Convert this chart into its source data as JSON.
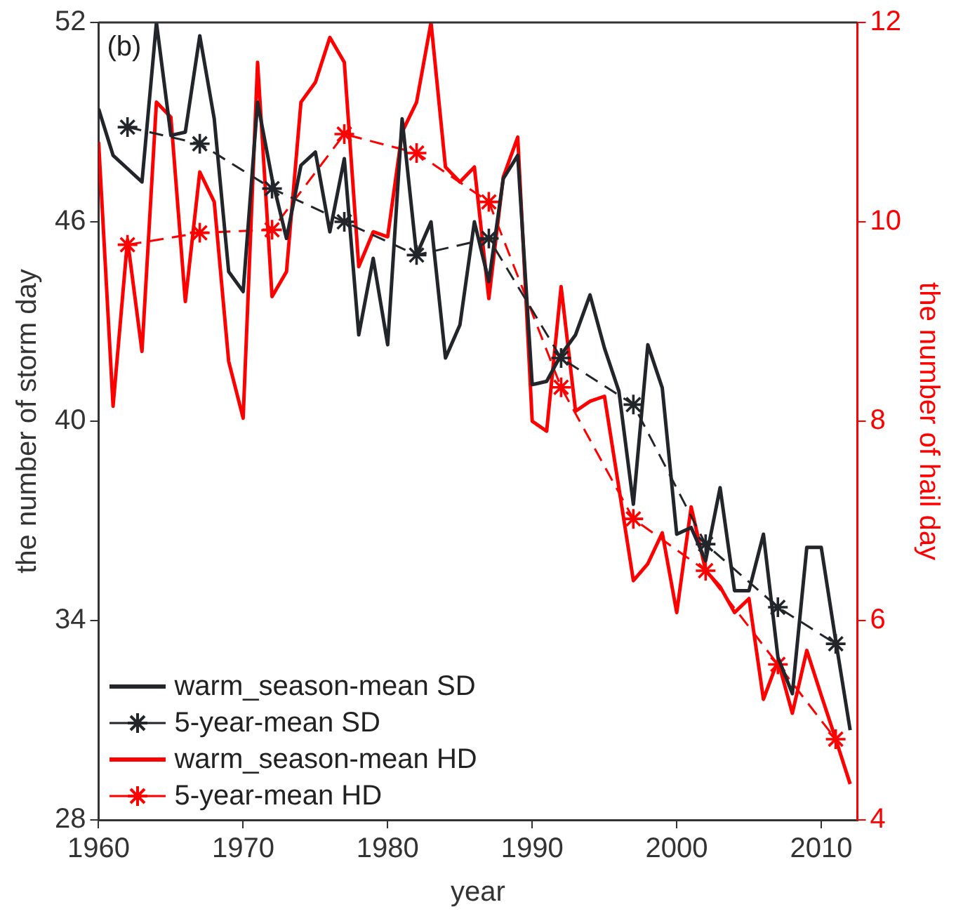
{
  "chart_data": {
    "type": "line",
    "xlabel": "year",
    "ylabel": "the number of storm day",
    "y2label": "the number of hail day",
    "annotations": [
      "(b)"
    ],
    "xlim": [
      1960,
      2012.5
    ],
    "xticks": [
      1960,
      1970,
      1980,
      1990,
      2000,
      2010
    ],
    "ylim": [
      28,
      52
    ],
    "yticks": [
      28,
      34,
      40,
      46,
      52
    ],
    "y2lim": [
      4,
      12
    ],
    "y2ticks": [
      4,
      6,
      8,
      10,
      12
    ],
    "legend": "bottom left",
    "grid": false,
    "x": [
      1960,
      1961,
      1962,
      1963,
      1964,
      1965,
      1966,
      1967,
      1968,
      1969,
      1970,
      1971,
      1972,
      1973,
      1974,
      1975,
      1976,
      1977,
      1978,
      1979,
      1980,
      1981,
      1982,
      1983,
      1984,
      1985,
      1986,
      1987,
      1988,
      1989,
      1990,
      1991,
      1992,
      1993,
      1994,
      1995,
      1996,
      1997,
      1998,
      1999,
      2000,
      2001,
      2002,
      2003,
      2004,
      2005,
      2006,
      2007,
      2008,
      2009,
      2010,
      2011,
      2012
    ],
    "series": [
      {
        "name": "warm_season-mean SD",
        "color": "#22262b",
        "marker": "none",
        "line_style": "solid",
        "values": [
          49.4,
          48.0,
          47.6,
          47.2,
          52,
          48.6,
          48.7,
          51.6,
          49.1,
          44.5,
          43.9,
          49.6,
          47.3,
          45.5,
          47.7,
          48.1,
          45.7,
          47.9,
          42.6,
          44.9,
          42.3,
          49.1,
          45.0,
          46.0,
          41.9,
          42.9,
          46.0,
          44.2,
          47.3,
          48.0,
          41.1,
          41.2,
          42.0,
          42.6,
          43.8,
          42.2,
          40.9,
          37.5,
          42.3,
          41.0,
          36.6,
          36.8,
          35.8,
          38.0,
          34.9,
          34.9,
          36.6,
          32.9,
          31.8,
          36.2,
          36.2,
          33.4,
          30.7
        ]
      },
      {
        "name": "5-year-mean SD",
        "color": "#22262b",
        "marker": "cross",
        "line_style": "dashed",
        "x": [
          1962,
          1967,
          1972,
          1977,
          1982,
          1987,
          1992,
          1997,
          2002,
          2007,
          2011
        ],
        "values": [
          48.85,
          48.35,
          47.0,
          46.0,
          45.0,
          45.5,
          41.9,
          40.5,
          36.3,
          34.4,
          33.3
        ]
      },
      {
        "name": "warm_season-mean HD",
        "color": "#ff0000",
        "axis": "y2",
        "marker": "none",
        "line_style": "solid",
        "values": [
          10.8,
          8.15,
          9.82,
          8.7,
          11.2,
          11.05,
          9.2,
          10.5,
          10.2,
          8.6,
          8.03,
          11.6,
          9.25,
          9.5,
          11.2,
          11.4,
          11.85,
          11.6,
          9.55,
          9.9,
          9.85,
          10.9,
          11.2,
          12.0,
          10.55,
          10.4,
          10.55,
          9.23,
          10.45,
          10.85,
          8.0,
          7.9,
          9.35,
          8.1,
          8.2,
          8.25,
          7.33,
          6.4,
          6.57,
          6.88,
          6.08,
          7.14,
          6.5,
          6.34,
          6.08,
          6.22,
          5.21,
          5.6,
          5.07,
          5.7,
          5.25,
          4.81,
          4.36
        ]
      },
      {
        "name": "5-year-mean HD",
        "color": "#ff0000",
        "axis": "y2",
        "marker": "cross",
        "line_style": "dashed",
        "x": [
          1962,
          1967,
          1972,
          1977,
          1982,
          1987,
          1992,
          1997,
          2002,
          2007,
          2011
        ],
        "values": [
          9.77,
          9.89,
          9.92,
          10.88,
          10.69,
          10.2,
          8.34,
          7.02,
          6.5,
          5.56,
          4.81
        ]
      }
    ]
  }
}
